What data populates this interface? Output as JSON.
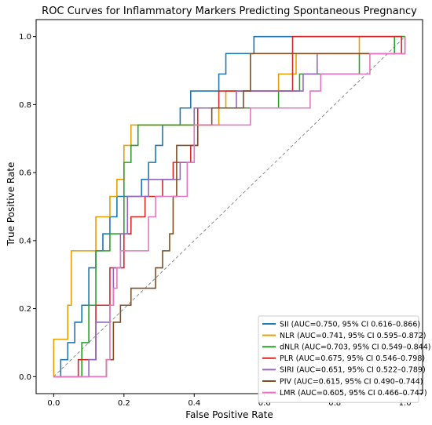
{
  "chart_data": {
    "type": "line",
    "title": "ROC Curves for Inflammatory Markers Predicting Spontaneous Pregnancy",
    "xlabel": "False Positive Rate",
    "ylabel": "True Positive Rate",
    "xlim": [
      -0.05,
      1.05
    ],
    "ylim": [
      -0.05,
      1.05
    ],
    "xticks": [
      "0.0",
      "0.2",
      "0.4",
      "0.6",
      "0.8",
      "1.0"
    ],
    "yticks": [
      "0.0",
      "0.2",
      "0.4",
      "0.6",
      "0.8",
      "1.0"
    ],
    "grid": false,
    "legend_position": "bottom-right",
    "reference_line": {
      "style": "dashed",
      "color": "#808080",
      "points": [
        [
          0,
          0
        ],
        [
          1,
          1
        ]
      ]
    },
    "series": [
      {
        "name": "SII (AUC=0.750, 95% CI 0.616–0.866)",
        "color": "#1f77b4",
        "points": [
          [
            0,
            0
          ],
          [
            0.02,
            0
          ],
          [
            0.02,
            0.05
          ],
          [
            0.04,
            0.05
          ],
          [
            0.04,
            0.1
          ],
          [
            0.06,
            0.1
          ],
          [
            0.06,
            0.16
          ],
          [
            0.08,
            0.16
          ],
          [
            0.08,
            0.21
          ],
          [
            0.1,
            0.21
          ],
          [
            0.1,
            0.32
          ],
          [
            0.12,
            0.32
          ],
          [
            0.12,
            0.37
          ],
          [
            0.14,
            0.37
          ],
          [
            0.14,
            0.42
          ],
          [
            0.16,
            0.42
          ],
          [
            0.16,
            0.47
          ],
          [
            0.18,
            0.47
          ],
          [
            0.18,
            0.53
          ],
          [
            0.25,
            0.53
          ],
          [
            0.25,
            0.58
          ],
          [
            0.27,
            0.58
          ],
          [
            0.27,
            0.63
          ],
          [
            0.29,
            0.63
          ],
          [
            0.29,
            0.68
          ],
          [
            0.31,
            0.68
          ],
          [
            0.31,
            0.74
          ],
          [
            0.36,
            0.74
          ],
          [
            0.36,
            0.79
          ],
          [
            0.39,
            0.79
          ],
          [
            0.39,
            0.84
          ],
          [
            0.47,
            0.84
          ],
          [
            0.47,
            0.89
          ],
          [
            0.49,
            0.89
          ],
          [
            0.49,
            0.95
          ],
          [
            0.57,
            0.95
          ],
          [
            0.57,
            1.0
          ],
          [
            1.0,
            1.0
          ]
        ]
      },
      {
        "name": "NLR (AUC=0.741, 95% CI 0.595–0.872)",
        "color": "#e69f00",
        "points": [
          [
            0,
            0
          ],
          [
            0,
            0.11
          ],
          [
            0.04,
            0.11
          ],
          [
            0.04,
            0.21
          ],
          [
            0.05,
            0.21
          ],
          [
            0.05,
            0.37
          ],
          [
            0.12,
            0.37
          ],
          [
            0.12,
            0.47
          ],
          [
            0.16,
            0.47
          ],
          [
            0.16,
            0.53
          ],
          [
            0.18,
            0.53
          ],
          [
            0.18,
            0.58
          ],
          [
            0.2,
            0.58
          ],
          [
            0.2,
            0.68
          ],
          [
            0.22,
            0.68
          ],
          [
            0.22,
            0.74
          ],
          [
            0.47,
            0.74
          ],
          [
            0.47,
            0.79
          ],
          [
            0.49,
            0.79
          ],
          [
            0.49,
            0.84
          ],
          [
            0.64,
            0.84
          ],
          [
            0.64,
            0.89
          ],
          [
            0.69,
            0.89
          ],
          [
            0.69,
            0.95
          ],
          [
            0.87,
            0.95
          ],
          [
            0.87,
            1.0
          ],
          [
            1.0,
            1.0
          ]
        ]
      },
      {
        "name": "dNLR (AUC=0.703, 95% CI 0.549–0.844)",
        "color": "#2ca02c",
        "points": [
          [
            0,
            0
          ],
          [
            0.08,
            0
          ],
          [
            0.08,
            0.1
          ],
          [
            0.1,
            0.1
          ],
          [
            0.1,
            0.21
          ],
          [
            0.12,
            0.21
          ],
          [
            0.12,
            0.37
          ],
          [
            0.16,
            0.37
          ],
          [
            0.16,
            0.42
          ],
          [
            0.2,
            0.42
          ],
          [
            0.2,
            0.63
          ],
          [
            0.22,
            0.63
          ],
          [
            0.22,
            0.68
          ],
          [
            0.24,
            0.68
          ],
          [
            0.24,
            0.74
          ],
          [
            0.4,
            0.74
          ],
          [
            0.4,
            0.79
          ],
          [
            0.64,
            0.79
          ],
          [
            0.64,
            0.84
          ],
          [
            0.7,
            0.84
          ],
          [
            0.7,
            0.89
          ],
          [
            0.87,
            0.89
          ],
          [
            0.87,
            0.95
          ],
          [
            0.97,
            0.95
          ],
          [
            0.97,
            1.0
          ],
          [
            1.0,
            1.0
          ]
        ]
      },
      {
        "name": "PLR (AUC=0.675, 95% CI 0.546–0.798)",
        "color": "#d62728",
        "points": [
          [
            0,
            0
          ],
          [
            0.07,
            0
          ],
          [
            0.07,
            0.05
          ],
          [
            0.12,
            0.05
          ],
          [
            0.12,
            0.21
          ],
          [
            0.16,
            0.21
          ],
          [
            0.16,
            0.32
          ],
          [
            0.2,
            0.32
          ],
          [
            0.2,
            0.42
          ],
          [
            0.22,
            0.42
          ],
          [
            0.22,
            0.47
          ],
          [
            0.26,
            0.47
          ],
          [
            0.26,
            0.53
          ],
          [
            0.31,
            0.53
          ],
          [
            0.31,
            0.58
          ],
          [
            0.34,
            0.58
          ],
          [
            0.34,
            0.63
          ],
          [
            0.39,
            0.63
          ],
          [
            0.39,
            0.68
          ],
          [
            0.41,
            0.68
          ],
          [
            0.41,
            0.79
          ],
          [
            0.47,
            0.79
          ],
          [
            0.47,
            0.84
          ],
          [
            0.68,
            0.84
          ],
          [
            0.68,
            1.0
          ],
          [
            0.99,
            1.0
          ],
          [
            0.99,
            0.95
          ],
          [
            1.0,
            0.95
          ]
        ]
      },
      {
        "name": "SIRI (AUC=0.651, 95% CI 0.522–0.789)",
        "color": "#9467bd",
        "points": [
          [
            0,
            0
          ],
          [
            0.1,
            0
          ],
          [
            0.1,
            0.05
          ],
          [
            0.12,
            0.05
          ],
          [
            0.12,
            0.16
          ],
          [
            0.16,
            0.16
          ],
          [
            0.16,
            0.21
          ],
          [
            0.17,
            0.21
          ],
          [
            0.17,
            0.32
          ],
          [
            0.19,
            0.32
          ],
          [
            0.19,
            0.42
          ],
          [
            0.21,
            0.42
          ],
          [
            0.21,
            0.53
          ],
          [
            0.27,
            0.53
          ],
          [
            0.27,
            0.58
          ],
          [
            0.36,
            0.58
          ],
          [
            0.36,
            0.63
          ],
          [
            0.4,
            0.63
          ],
          [
            0.4,
            0.79
          ],
          [
            0.52,
            0.79
          ],
          [
            0.52,
            0.84
          ],
          [
            0.71,
            0.84
          ],
          [
            0.71,
            0.89
          ],
          [
            0.75,
            0.89
          ],
          [
            0.75,
            0.95
          ],
          [
            1.0,
            0.95
          ]
        ]
      },
      {
        "name": "PIV (AUC=0.615, 95% CI 0.490–0.744)",
        "color": "#7f4f24",
        "points": [
          [
            0,
            0
          ],
          [
            0.15,
            0
          ],
          [
            0.15,
            0.05
          ],
          [
            0.17,
            0.05
          ],
          [
            0.17,
            0.16
          ],
          [
            0.19,
            0.16
          ],
          [
            0.19,
            0.21
          ],
          [
            0.22,
            0.21
          ],
          [
            0.22,
            0.26
          ],
          [
            0.29,
            0.26
          ],
          [
            0.29,
            0.32
          ],
          [
            0.31,
            0.32
          ],
          [
            0.31,
            0.37
          ],
          [
            0.33,
            0.37
          ],
          [
            0.33,
            0.42
          ],
          [
            0.34,
            0.42
          ],
          [
            0.34,
            0.53
          ],
          [
            0.35,
            0.53
          ],
          [
            0.35,
            0.68
          ],
          [
            0.41,
            0.68
          ],
          [
            0.41,
            0.74
          ],
          [
            0.45,
            0.74
          ],
          [
            0.45,
            0.79
          ],
          [
            0.54,
            0.79
          ],
          [
            0.54,
            0.84
          ],
          [
            0.56,
            0.84
          ],
          [
            0.56,
            0.95
          ],
          [
            1.0,
            0.95
          ],
          [
            1.0,
            1.0
          ]
        ]
      },
      {
        "name": "LMR (AUC=0.605, 95% CI 0.466–0.747)",
        "color": "#e377c2",
        "points": [
          [
            0,
            0
          ],
          [
            0.15,
            0
          ],
          [
            0.15,
            0.05
          ],
          [
            0.16,
            0.05
          ],
          [
            0.16,
            0.21
          ],
          [
            0.17,
            0.21
          ],
          [
            0.17,
            0.26
          ],
          [
            0.18,
            0.26
          ],
          [
            0.18,
            0.32
          ],
          [
            0.19,
            0.32
          ],
          [
            0.19,
            0.37
          ],
          [
            0.27,
            0.37
          ],
          [
            0.27,
            0.47
          ],
          [
            0.29,
            0.47
          ],
          [
            0.29,
            0.53
          ],
          [
            0.38,
            0.53
          ],
          [
            0.38,
            0.63
          ],
          [
            0.4,
            0.63
          ],
          [
            0.4,
            0.74
          ],
          [
            0.56,
            0.74
          ],
          [
            0.56,
            0.79
          ],
          [
            0.73,
            0.79
          ],
          [
            0.73,
            0.84
          ],
          [
            0.76,
            0.84
          ],
          [
            0.76,
            0.89
          ],
          [
            0.9,
            0.89
          ],
          [
            0.9,
            0.95
          ],
          [
            1.0,
            0.95
          ],
          [
            1.0,
            1.0
          ]
        ]
      }
    ]
  }
}
